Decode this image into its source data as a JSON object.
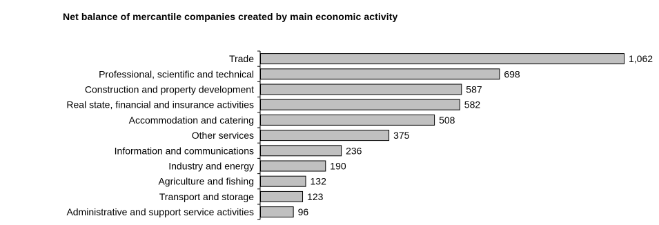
{
  "chart_data": {
    "type": "bar",
    "orientation": "horizontal",
    "title": "Net balance of  mercantile companies created  by main economic activity",
    "categories": [
      "Trade",
      "Professional, scientific and technical",
      "Construction and property development",
      "Real state, financial and insurance activities",
      "Accommodation and catering",
      "Other services",
      "Information and communications",
      "Industry and energy",
      "Agriculture and fishing",
      "Transport and storage",
      "Administrative and support service activities"
    ],
    "values": [
      1062,
      698,
      587,
      582,
      508,
      375,
      236,
      190,
      132,
      123,
      96
    ],
    "value_labels": [
      "1,062",
      "698",
      "587",
      "582",
      "508",
      "375",
      "236",
      "190",
      "132",
      "123",
      "96"
    ],
    "xlim": [
      0,
      1062
    ],
    "grid": false,
    "legend": "none",
    "bar_color": "#c0c0c0",
    "bar_edge_color": "#000000"
  }
}
